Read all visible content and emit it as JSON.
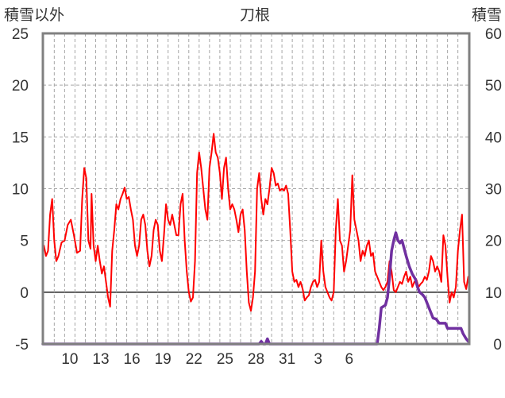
{
  "chart_data": {
    "type": "line",
    "title": "刀根",
    "left_axis_label": "積雪以外",
    "right_axis_label": "積雪",
    "left_ylim": [
      -5,
      25
    ],
    "left_ticks": [
      "25",
      "20",
      "15",
      "10",
      "5",
      "0",
      "-5"
    ],
    "right_ylim": [
      0,
      60
    ],
    "right_ticks": [
      "60",
      "50",
      "40",
      "30",
      "20",
      "10",
      "0"
    ],
    "x_tick_labels": [
      "10",
      "13",
      "16",
      "19",
      "22",
      "25",
      "28",
      "31",
      "3",
      "6"
    ],
    "grid": "dashed",
    "colors": {
      "temperature": "#ff0000",
      "snow": "#7030a0",
      "frame": "#808080",
      "grid": "#a6a6a6",
      "zero_line": "#595959"
    },
    "series": [
      {
        "axis": "left",
        "color": "#ff0000",
        "points": [
          [
            8.0,
            4.5
          ],
          [
            8.2,
            3.5
          ],
          [
            8.4,
            4.0
          ],
          [
            8.6,
            7.5
          ],
          [
            8.8,
            9.0
          ],
          [
            9.0,
            5.0
          ],
          [
            9.2,
            3.0
          ],
          [
            9.4,
            3.5
          ],
          [
            9.7,
            4.8
          ],
          [
            10.0,
            5.0
          ],
          [
            10.3,
            6.5
          ],
          [
            10.6,
            7.0
          ],
          [
            10.9,
            5.5
          ],
          [
            11.2,
            3.8
          ],
          [
            11.5,
            4.0
          ],
          [
            11.7,
            9.0
          ],
          [
            11.9,
            12.0
          ],
          [
            12.1,
            11.0
          ],
          [
            12.3,
            5.0
          ],
          [
            12.5,
            4.2
          ],
          [
            12.6,
            9.5
          ],
          [
            12.8,
            4.5
          ],
          [
            13.0,
            3.0
          ],
          [
            13.2,
            4.5
          ],
          [
            13.4,
            3.0
          ],
          [
            13.6,
            1.8
          ],
          [
            13.8,
            2.5
          ],
          [
            14.0,
            1.0
          ],
          [
            14.2,
            -0.5
          ],
          [
            14.4,
            -1.4
          ],
          [
            14.6,
            4.0
          ],
          [
            14.8,
            6.0
          ],
          [
            15.0,
            8.5
          ],
          [
            15.2,
            8.0
          ],
          [
            15.4,
            9.0
          ],
          [
            15.6,
            9.5
          ],
          [
            15.8,
            10.1
          ],
          [
            16.0,
            9.0
          ],
          [
            16.2,
            9.2
          ],
          [
            16.4,
            8.0
          ],
          [
            16.6,
            7.0
          ],
          [
            16.8,
            4.5
          ],
          [
            17.0,
            3.5
          ],
          [
            17.2,
            4.5
          ],
          [
            17.4,
            7.0
          ],
          [
            17.6,
            7.5
          ],
          [
            17.8,
            6.5
          ],
          [
            18.0,
            4.0
          ],
          [
            18.2,
            2.5
          ],
          [
            18.4,
            3.5
          ],
          [
            18.6,
            6.0
          ],
          [
            18.8,
            7.0
          ],
          [
            19.0,
            6.5
          ],
          [
            19.2,
            4.0
          ],
          [
            19.4,
            3.0
          ],
          [
            19.6,
            5.5
          ],
          [
            19.8,
            8.5
          ],
          [
            20.0,
            7.0
          ],
          [
            20.2,
            6.5
          ],
          [
            20.4,
            7.5
          ],
          [
            20.6,
            6.5
          ],
          [
            20.8,
            5.5
          ],
          [
            21.0,
            5.5
          ],
          [
            21.2,
            8.5
          ],
          [
            21.4,
            9.5
          ],
          [
            21.6,
            5.0
          ],
          [
            21.8,
            2.0
          ],
          [
            22.0,
            0.0
          ],
          [
            22.2,
            -0.9
          ],
          [
            22.4,
            -0.5
          ],
          [
            22.6,
            3.0
          ],
          [
            22.8,
            11.5
          ],
          [
            23.0,
            13.5
          ],
          [
            23.2,
            12.0
          ],
          [
            23.4,
            10.0
          ],
          [
            23.6,
            8.0
          ],
          [
            23.8,
            7.0
          ],
          [
            24.0,
            12.0
          ],
          [
            24.2,
            13.5
          ],
          [
            24.4,
            15.3
          ],
          [
            24.6,
            13.5
          ],
          [
            24.8,
            13.0
          ],
          [
            25.0,
            11.5
          ],
          [
            25.2,
            9.0
          ],
          [
            25.4,
            12.0
          ],
          [
            25.6,
            13.0
          ],
          [
            25.8,
            10.0
          ],
          [
            26.0,
            8.0
          ],
          [
            26.2,
            8.5
          ],
          [
            26.4,
            8.0
          ],
          [
            26.6,
            7.0
          ],
          [
            26.8,
            5.8
          ],
          [
            27.0,
            7.5
          ],
          [
            27.2,
            8.0
          ],
          [
            27.4,
            6.0
          ],
          [
            27.6,
            2.0
          ],
          [
            27.8,
            -1.0
          ],
          [
            28.0,
            -1.8
          ],
          [
            28.2,
            -0.5
          ],
          [
            28.4,
            2.0
          ],
          [
            28.6,
            10.0
          ],
          [
            28.8,
            11.5
          ],
          [
            29.0,
            9.0
          ],
          [
            29.2,
            7.5
          ],
          [
            29.4,
            9.0
          ],
          [
            29.6,
            8.5
          ],
          [
            29.8,
            10.0
          ],
          [
            30.0,
            12.0
          ],
          [
            30.2,
            11.5
          ],
          [
            30.4,
            10.3
          ],
          [
            30.6,
            10.5
          ],
          [
            30.8,
            9.8
          ],
          [
            31.0,
            10.0
          ],
          [
            31.2,
            9.8
          ],
          [
            31.4,
            10.3
          ],
          [
            31.6,
            9.5
          ],
          [
            31.8,
            6.0
          ],
          [
            32.0,
            2.0
          ],
          [
            32.2,
            1.0
          ],
          [
            32.4,
            1.2
          ],
          [
            32.6,
            0.5
          ],
          [
            32.8,
            1.0
          ],
          [
            33.0,
            0.3
          ],
          [
            33.2,
            -0.8
          ],
          [
            33.4,
            -0.5
          ],
          [
            33.6,
            -0.3
          ],
          [
            33.8,
            0.5
          ],
          [
            34.0,
            1.0
          ],
          [
            34.2,
            1.2
          ],
          [
            34.4,
            0.5
          ],
          [
            34.6,
            1.0
          ],
          [
            34.8,
            5.0
          ],
          [
            35.0,
            2.0
          ],
          [
            35.2,
            0.5
          ],
          [
            35.4,
            0.0
          ],
          [
            35.6,
            -0.5
          ],
          [
            35.8,
            -0.8
          ],
          [
            36.0,
            0.0
          ],
          [
            36.2,
            6.0
          ],
          [
            36.4,
            9.0
          ],
          [
            36.6,
            5.0
          ],
          [
            36.8,
            4.5
          ],
          [
            37.0,
            2.0
          ],
          [
            37.2,
            3.0
          ],
          [
            37.4,
            4.5
          ],
          [
            37.6,
            6.0
          ],
          [
            37.8,
            11.3
          ],
          [
            38.0,
            7.0
          ],
          [
            38.2,
            6.0
          ],
          [
            38.4,
            5.0
          ],
          [
            38.6,
            3.0
          ],
          [
            38.8,
            4.0
          ],
          [
            39.0,
            3.5
          ],
          [
            39.2,
            4.5
          ],
          [
            39.4,
            5.0
          ],
          [
            39.6,
            3.5
          ],
          [
            39.8,
            3.8
          ],
          [
            40.0,
            2.0
          ],
          [
            40.2,
            1.5
          ],
          [
            40.4,
            1.0
          ],
          [
            40.6,
            0.5
          ],
          [
            40.8,
            0.2
          ],
          [
            41.0,
            0.5
          ],
          [
            41.2,
            1.0
          ],
          [
            41.4,
            3.0
          ],
          [
            41.6,
            2.0
          ],
          [
            41.8,
            0.2
          ],
          [
            42.0,
            0.0
          ],
          [
            42.2,
            0.5
          ],
          [
            42.4,
            1.0
          ],
          [
            42.6,
            0.8
          ],
          [
            42.8,
            1.5
          ],
          [
            43.0,
            2.0
          ],
          [
            43.2,
            1.0
          ],
          [
            43.4,
            1.5
          ],
          [
            43.6,
            0.5
          ],
          [
            43.8,
            1.0
          ],
          [
            44.0,
            1.2
          ],
          [
            44.2,
            0.5
          ],
          [
            44.4,
            0.8
          ],
          [
            44.6,
            1.0
          ],
          [
            44.8,
            1.5
          ],
          [
            45.0,
            1.2
          ],
          [
            45.2,
            2.0
          ],
          [
            45.4,
            3.5
          ],
          [
            45.6,
            3.0
          ],
          [
            45.8,
            2.0
          ],
          [
            46.0,
            2.5
          ],
          [
            46.2,
            2.0
          ],
          [
            46.4,
            1.0
          ],
          [
            46.6,
            5.5
          ],
          [
            46.8,
            4.5
          ],
          [
            47.0,
            1.5
          ],
          [
            47.2,
            -1.0
          ],
          [
            47.4,
            0.0
          ],
          [
            47.6,
            -0.5
          ],
          [
            47.8,
            0.5
          ],
          [
            48.0,
            4.0
          ],
          [
            48.2,
            6.0
          ],
          [
            48.4,
            7.5
          ],
          [
            48.6,
            1.0
          ],
          [
            48.8,
            0.3
          ],
          [
            49.0,
            1.5
          ]
        ]
      },
      {
        "axis": "right",
        "color": "#7030a0",
        "points": [
          [
            7.9,
            0.0
          ],
          [
            28.8,
            0.0
          ],
          [
            29.0,
            0.5
          ],
          [
            29.2,
            0.0
          ],
          [
            29.4,
            0.0
          ],
          [
            29.6,
            1.0
          ],
          [
            29.8,
            0.0
          ],
          [
            40.2,
            0.0
          ],
          [
            40.4,
            3.0
          ],
          [
            40.6,
            7.0
          ],
          [
            41.0,
            7.5
          ],
          [
            41.2,
            9.0
          ],
          [
            41.4,
            13.0
          ],
          [
            41.6,
            18.0
          ],
          [
            41.8,
            20.0
          ],
          [
            42.0,
            21.5
          ],
          [
            42.2,
            20.0
          ],
          [
            42.4,
            19.5
          ],
          [
            42.6,
            20.0
          ],
          [
            42.8,
            18.5
          ],
          [
            43.0,
            17.0
          ],
          [
            43.3,
            15.0
          ],
          [
            43.6,
            13.5
          ],
          [
            43.9,
            12.5
          ],
          [
            44.1,
            11.0
          ],
          [
            44.3,
            10.0
          ],
          [
            44.6,
            9.5
          ],
          [
            44.8,
            9.0
          ],
          [
            45.0,
            8.0
          ],
          [
            45.2,
            7.0
          ],
          [
            45.4,
            6.0
          ],
          [
            45.6,
            5.0
          ],
          [
            45.9,
            4.8
          ],
          [
            46.2,
            4.0
          ],
          [
            46.5,
            4.0
          ],
          [
            46.7,
            4.0
          ],
          [
            46.8,
            4.0
          ],
          [
            46.9,
            3.5
          ],
          [
            47.0,
            3.0
          ],
          [
            48.0,
            3.0
          ],
          [
            48.3,
            3.0
          ],
          [
            48.5,
            2.0
          ],
          [
            48.8,
            1.0
          ],
          [
            49.0,
            0.5
          ]
        ]
      }
    ]
  }
}
